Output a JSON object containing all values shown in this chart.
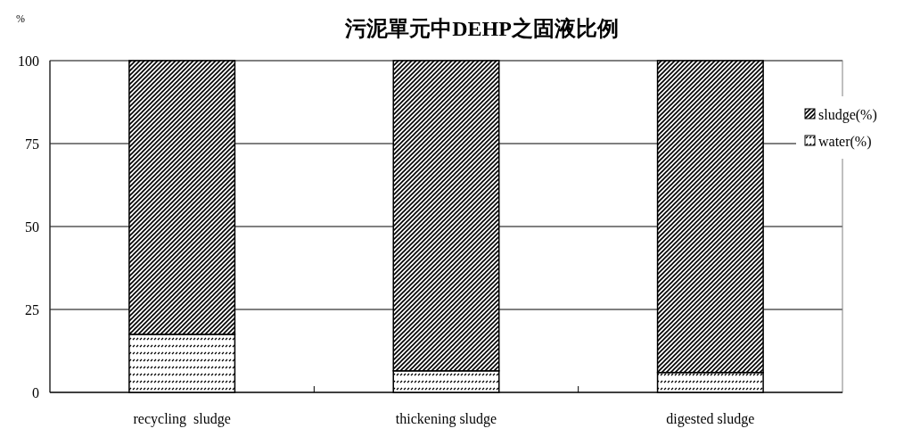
{
  "chart_data": {
    "type": "bar",
    "title": "污泥單元中DEHP之固液比例",
    "ylabel": "%",
    "categories": [
      "recycling  sludge",
      "thickening sludge",
      "digested sludge"
    ],
    "stacked": true,
    "series": [
      {
        "name": "water(%)",
        "color": "#000000",
        "values": [
          17.5,
          6.5,
          6
        ]
      },
      {
        "name": "sludge(%)",
        "color": "#000000",
        "values": [
          82.5,
          93.5,
          94
        ]
      }
    ],
    "ylim": [
      0,
      100
    ],
    "yticks": [
      0,
      25,
      50,
      75,
      100
    ],
    "grid": "y",
    "legend": "right"
  }
}
